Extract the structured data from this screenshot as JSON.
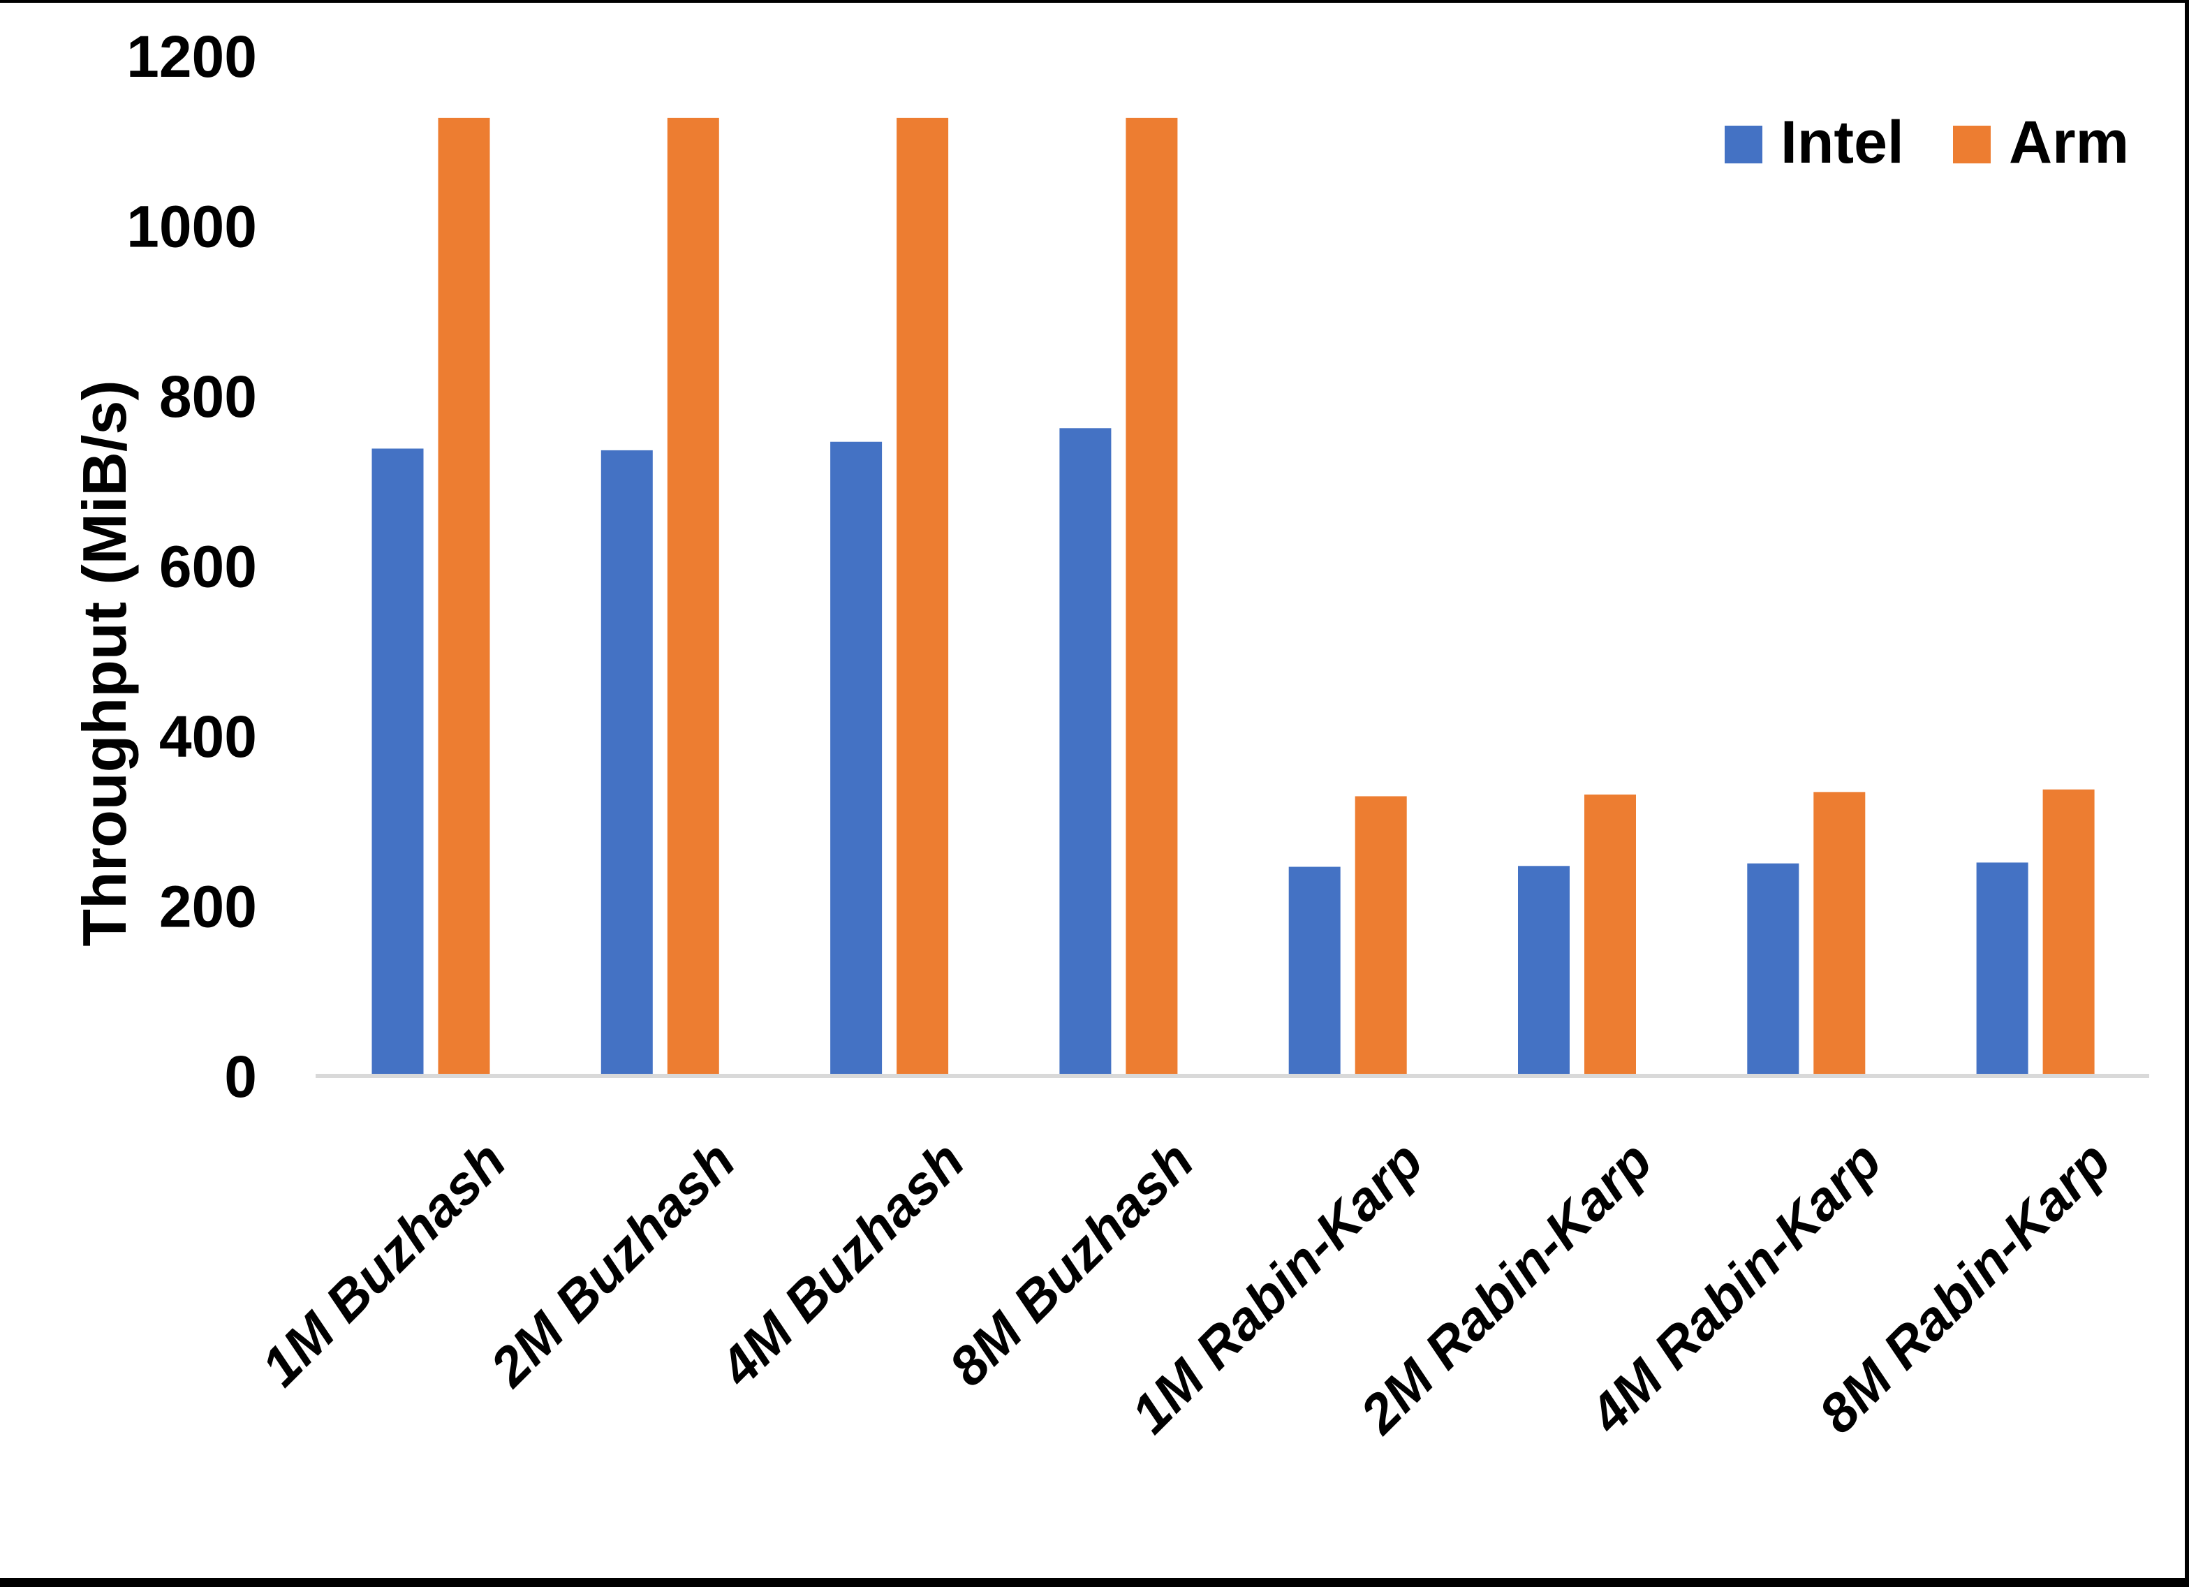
{
  "frame": {
    "border_color": "#000000",
    "background_color": "#ffffff"
  },
  "axis_colors": {
    "baseline": "#d9d9d9",
    "text": "#000000"
  },
  "chart_data": {
    "type": "bar",
    "title": "",
    "xlabel": "",
    "ylabel": "Throughput (MiB/s)",
    "ylim": [
      0,
      1200
    ],
    "yticks": [
      0,
      200,
      400,
      600,
      800,
      1000,
      1200
    ],
    "grid": false,
    "legend_position": "top-right",
    "categories": [
      "1M Buzhash",
      "2M Buzhash",
      "4M Buzhash",
      "8M Buzhash",
      "1M Rabin-Karp",
      "2M Rabin-Karp",
      "4M Rabin-Karp",
      "8M Rabin-Karp"
    ],
    "series": [
      {
        "name": "Intel",
        "color": "#4472C4",
        "values": [
          738,
          736,
          746,
          762,
          246,
          247,
          250,
          251
        ]
      },
      {
        "name": "Arm",
        "color": "#ED7D31",
        "values": [
          1127,
          1127,
          1127,
          1127,
          329,
          331,
          334,
          337
        ]
      }
    ]
  }
}
